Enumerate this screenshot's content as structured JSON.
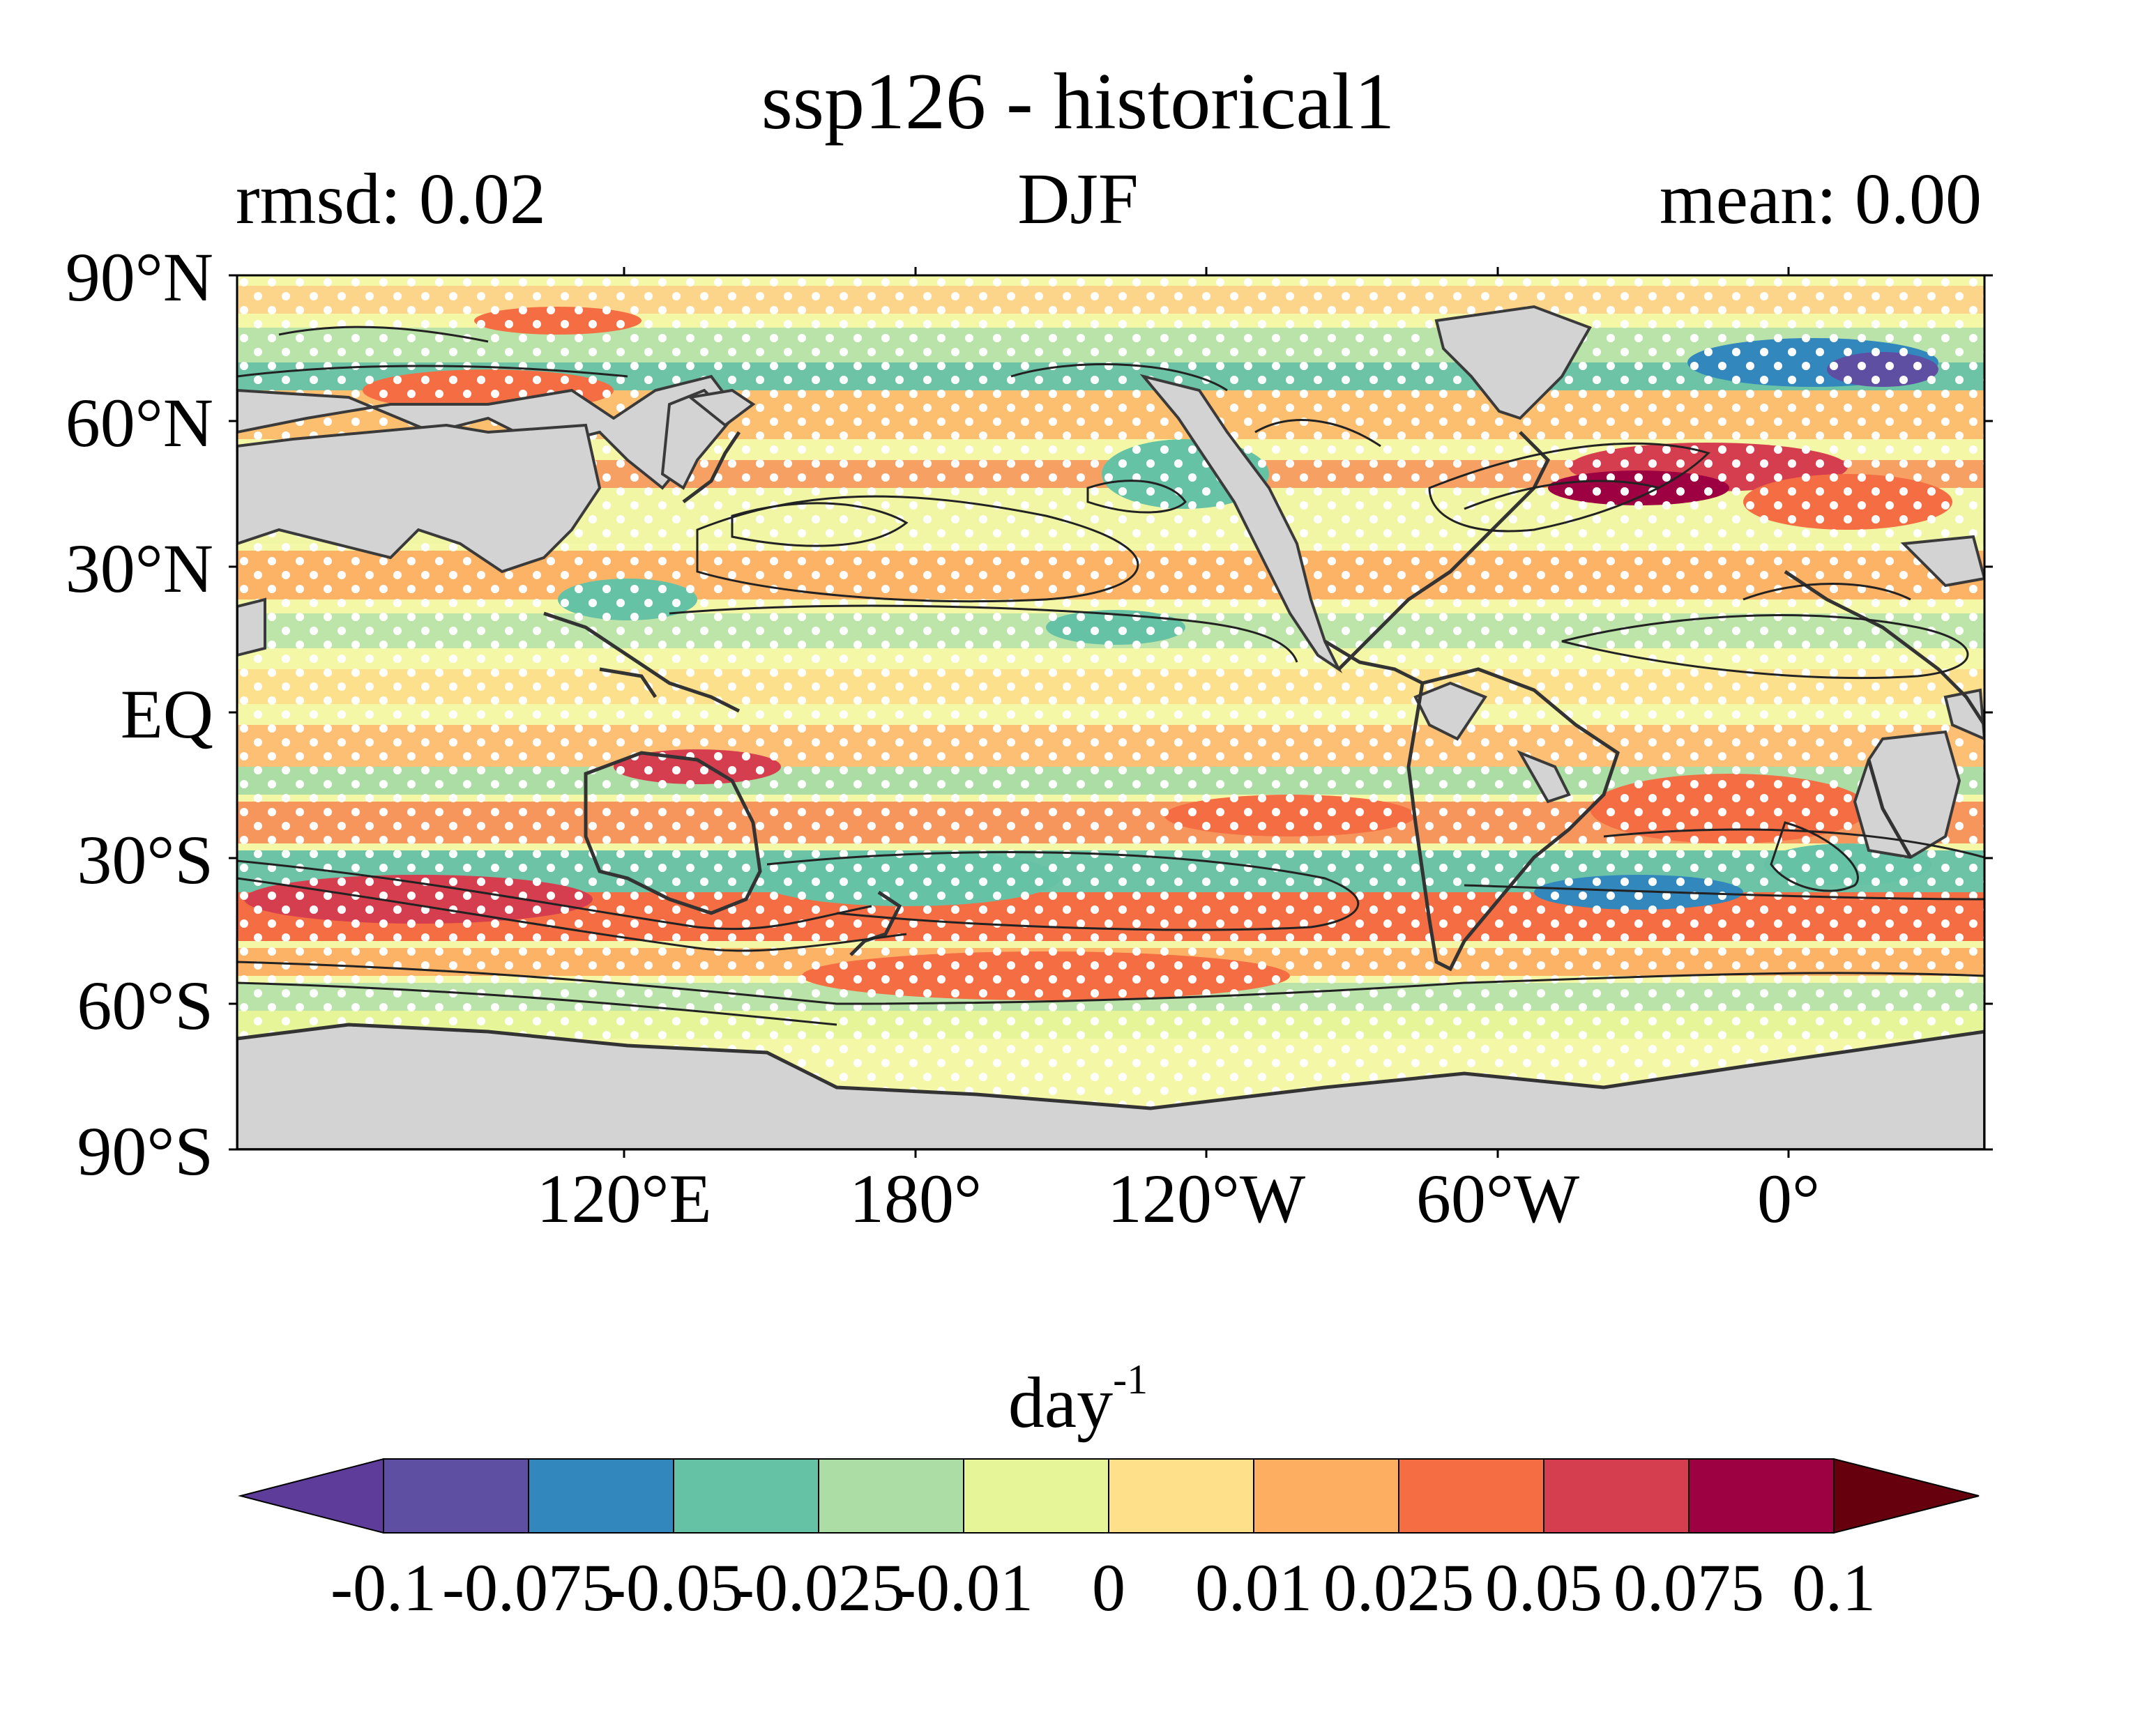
{
  "title": "ssp126 - historical1",
  "subtitle_left": "rmsd: 0.02",
  "subtitle_center": "DJF",
  "subtitle_right": "mean: 0.00",
  "y_ticks": [
    "90°N",
    "60°N",
    "30°N",
    "EQ",
    "30°S",
    "60°S",
    "90°S"
  ],
  "x_ticks": [
    "120°E",
    "180°",
    "120°W",
    "60°W",
    "0°"
  ],
  "colorbar": {
    "unit_base": "day",
    "unit_exp": "-1",
    "colors": [
      "#5e4fa2",
      "#3288bd",
      "#66c2a5",
      "#abdda4",
      "#e6f598",
      "#fee08b",
      "#fdae61",
      "#f46d43",
      "#d53e4f",
      "#9e0142"
    ],
    "under_color": "#5e3c99",
    "over_color": "#67000d",
    "labels": [
      "-0.1",
      "-0.075",
      "-0.05",
      "-0.025",
      "-0.01",
      "0",
      "0.01",
      "0.025",
      "0.05",
      "0.075",
      "0.1"
    ]
  },
  "colors": {
    "land": "#d3d3d3",
    "stipple": "#ffffff",
    "contour": "#222222",
    "coast": "#333333"
  }
}
